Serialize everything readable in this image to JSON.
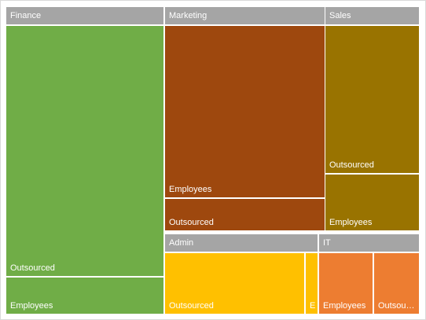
{
  "chart_data": {
    "type": "treemap",
    "groups": [
      {
        "name": "Finance",
        "color": "#70ad47",
        "items": [
          {
            "name": "Outsourced",
            "value": 82
          },
          {
            "name": "Employees",
            "value": 12
          }
        ]
      },
      {
        "name": "Marketing",
        "color": "#9e480e",
        "items": [
          {
            "name": "Employees",
            "value": 43
          },
          {
            "name": "Outsourced",
            "value": 8
          }
        ]
      },
      {
        "name": "Sales",
        "color": "#997300",
        "items": [
          {
            "name": "Outsourced",
            "value": 21
          },
          {
            "name": "Employees",
            "value": 8
          }
        ]
      },
      {
        "name": "Admin",
        "color": "#ffc000",
        "items": [
          {
            "name": "Outsourced",
            "value": 12
          },
          {
            "name": "E...",
            "value": 1
          }
        ]
      },
      {
        "name": "IT",
        "color": "#ed7d31",
        "items": [
          {
            "name": "Employees",
            "value": 6
          },
          {
            "name": "Outsourced",
            "value": 5
          }
        ]
      }
    ]
  }
}
